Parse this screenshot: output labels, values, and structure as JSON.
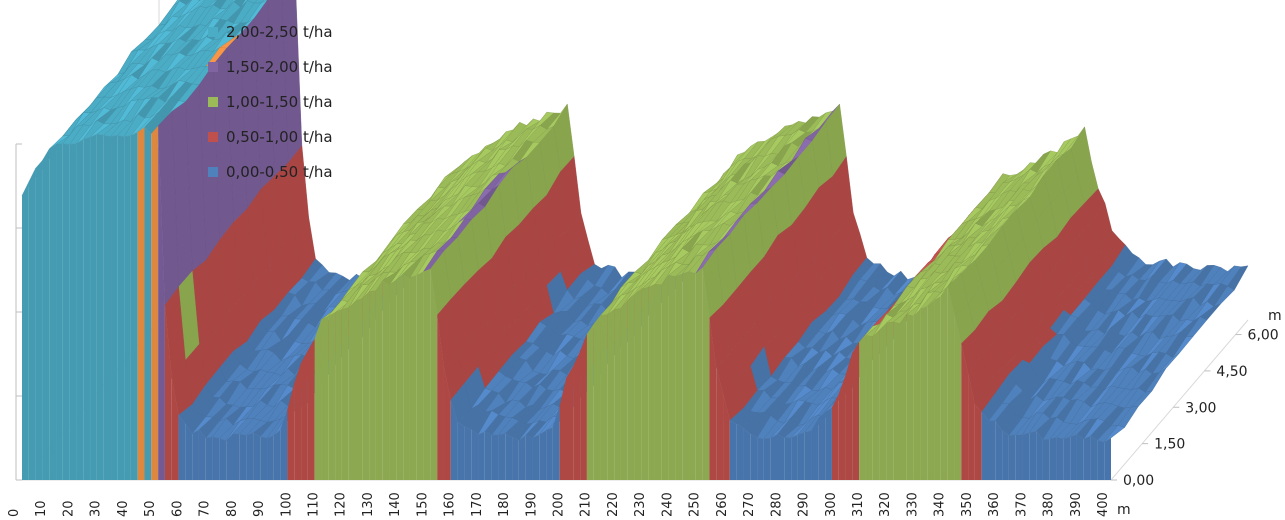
{
  "chart_data": {
    "type": "area",
    "subtype": "3d-surface",
    "x_unit": "m",
    "y_unit": "m",
    "x_ticks": [
      "0",
      "10",
      "20",
      "30",
      "40",
      "50",
      "60",
      "70",
      "80",
      "90",
      "100",
      "110",
      "120",
      "130",
      "140",
      "150",
      "160",
      "170",
      "180",
      "190",
      "200",
      "210",
      "220",
      "230",
      "240",
      "250",
      "260",
      "270",
      "280",
      "290",
      "300",
      "310",
      "320",
      "330",
      "340",
      "350",
      "360",
      "370",
      "380",
      "390",
      "400"
    ],
    "y_ticks": [
      "0,00",
      "1,50",
      "3,00",
      "4,50",
      "6,00"
    ],
    "legend_position": "top-left",
    "grid": false,
    "bands": [
      {
        "label": "2,00-2,50 t/ha",
        "from": 2.0,
        "to": 2.5,
        "color": "#4bacc6"
      },
      {
        "label": "1,50-2,00 t/ha",
        "from": 1.5,
        "to": 2.0,
        "color": "#8064a2"
      },
      {
        "label": "1,00-1,50 t/ha",
        "from": 1.0,
        "to": 1.5,
        "color": "#9bbb59"
      },
      {
        "label": "0,50-1,00 t/ha",
        "from": 0.5,
        "to": 1.0,
        "color": "#c0504d"
      },
      {
        "label": "0,00-0,50 t/ha",
        "from": 0.0,
        "to": 0.5,
        "color": "#4f81bd"
      }
    ],
    "top_band_color": "#f79646",
    "surface_profile": {
      "x_m": [
        0,
        5,
        10,
        20,
        30,
        40,
        50,
        53,
        57,
        60,
        70,
        80,
        90,
        95,
        100,
        105,
        110,
        120,
        130,
        140,
        150,
        155,
        160,
        170,
        180,
        190,
        195,
        200,
        205,
        210,
        220,
        230,
        240,
        250,
        255,
        260,
        270,
        280,
        290,
        300,
        305,
        310,
        320,
        330,
        340,
        350,
        360,
        370,
        380,
        390,
        400
      ],
      "t_ha": [
        2.05,
        2.2,
        2.35,
        2.42,
        2.46,
        2.48,
        2.5,
        1.0,
        0.45,
        0.38,
        0.3,
        0.32,
        0.3,
        0.35,
        0.7,
        0.92,
        1.12,
        1.25,
        1.38,
        1.45,
        1.52,
        0.78,
        0.42,
        0.33,
        0.3,
        0.32,
        0.36,
        0.72,
        0.94,
        1.12,
        1.25,
        1.38,
        1.45,
        1.52,
        0.78,
        0.42,
        0.33,
        0.3,
        0.35,
        0.6,
        0.9,
        1.02,
        1.12,
        1.22,
        1.36,
        0.55,
        0.35,
        0.33,
        0.3,
        0.3,
        0.28
      ]
    }
  }
}
